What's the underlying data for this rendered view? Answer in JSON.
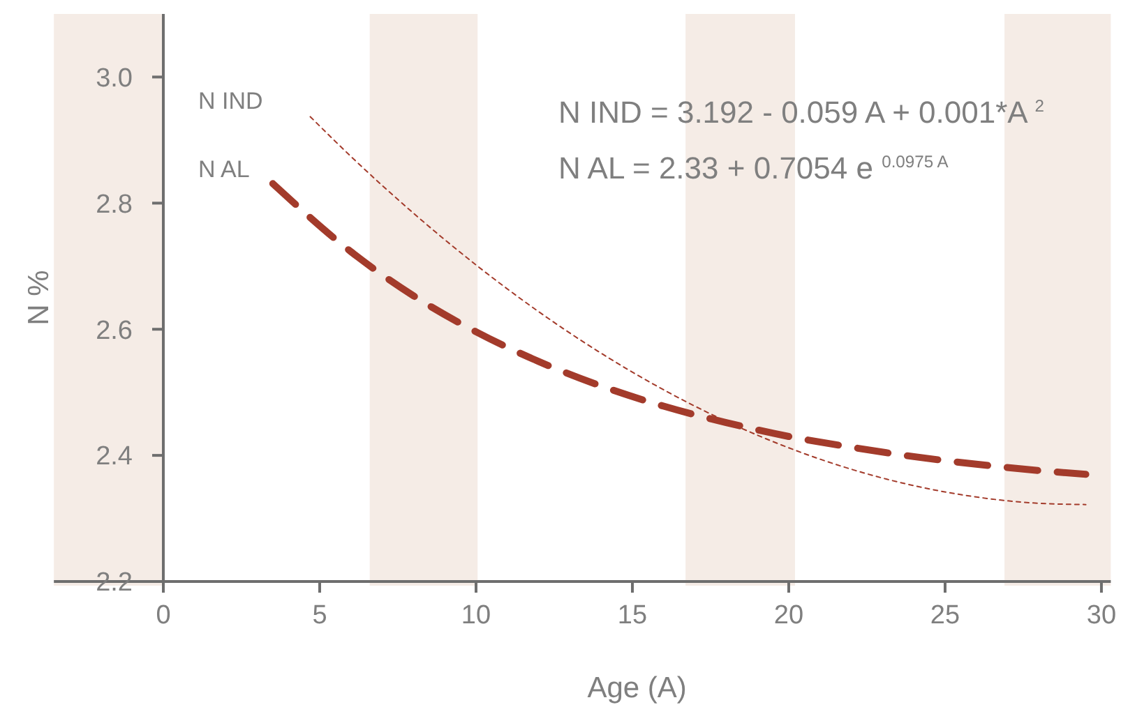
{
  "chart_data": {
    "type": "line",
    "xlabel": "Age (A)",
    "ylabel": "N %",
    "xlim": [
      -3.5,
      30.3
    ],
    "xticks": [
      0,
      5,
      10,
      15,
      20,
      25,
      30
    ],
    "ylim": [
      2.2,
      3.1
    ],
    "yticks": [
      {
        "value": 2.2,
        "label": "2.2"
      },
      {
        "value": 2.4,
        "label": "2.4"
      },
      {
        "value": 2.6,
        "label": "2.6"
      },
      {
        "value": 2.8,
        "label": "2.8"
      },
      {
        "value": 3.0,
        "label": "3.0"
      }
    ],
    "grid": false,
    "marker": "none",
    "series": [
      {
        "name": "N IND",
        "color": "#a33b2b",
        "line_style": "dotted",
        "x": [
          4.7,
          6,
          8,
          10,
          12,
          14,
          16,
          18,
          20,
          22,
          24,
          26,
          28,
          29.5
        ],
        "values": [
          2.937,
          2.874,
          2.784,
          2.702,
          2.628,
          2.562,
          2.504,
          2.454,
          2.412,
          2.378,
          2.352,
          2.334,
          2.324,
          2.322
        ]
      },
      {
        "name": "N AL",
        "color": "#a33b2b",
        "line_style": "dashed",
        "x": [
          3.5,
          6,
          8,
          10,
          12,
          14,
          16,
          18,
          20,
          22,
          24,
          26,
          28,
          29.5
        ],
        "values": [
          2.831,
          2.723,
          2.653,
          2.596,
          2.549,
          2.51,
          2.478,
          2.452,
          2.43,
          2.413,
          2.398,
          2.386,
          2.376,
          2.37
        ]
      }
    ],
    "bands": [
      {
        "axis": "x",
        "from": -3.5,
        "to": 0,
        "color": "#f5ece6"
      },
      {
        "axis": "x",
        "from": 6.6,
        "to": 10.05,
        "color": "#f5ece6"
      },
      {
        "axis": "x",
        "from": 16.7,
        "to": 20.2,
        "color": "#f5ece6"
      },
      {
        "axis": "x",
        "from": 26.9,
        "to": 30.3,
        "color": "#f5ece6"
      }
    ],
    "annotations": [
      "N IND = 3.192 - 0.059 A + 0.001*A $^{2}$",
      "N AL = 2.33 + 0.7054 e $^{0.0975 A}$"
    ]
  }
}
